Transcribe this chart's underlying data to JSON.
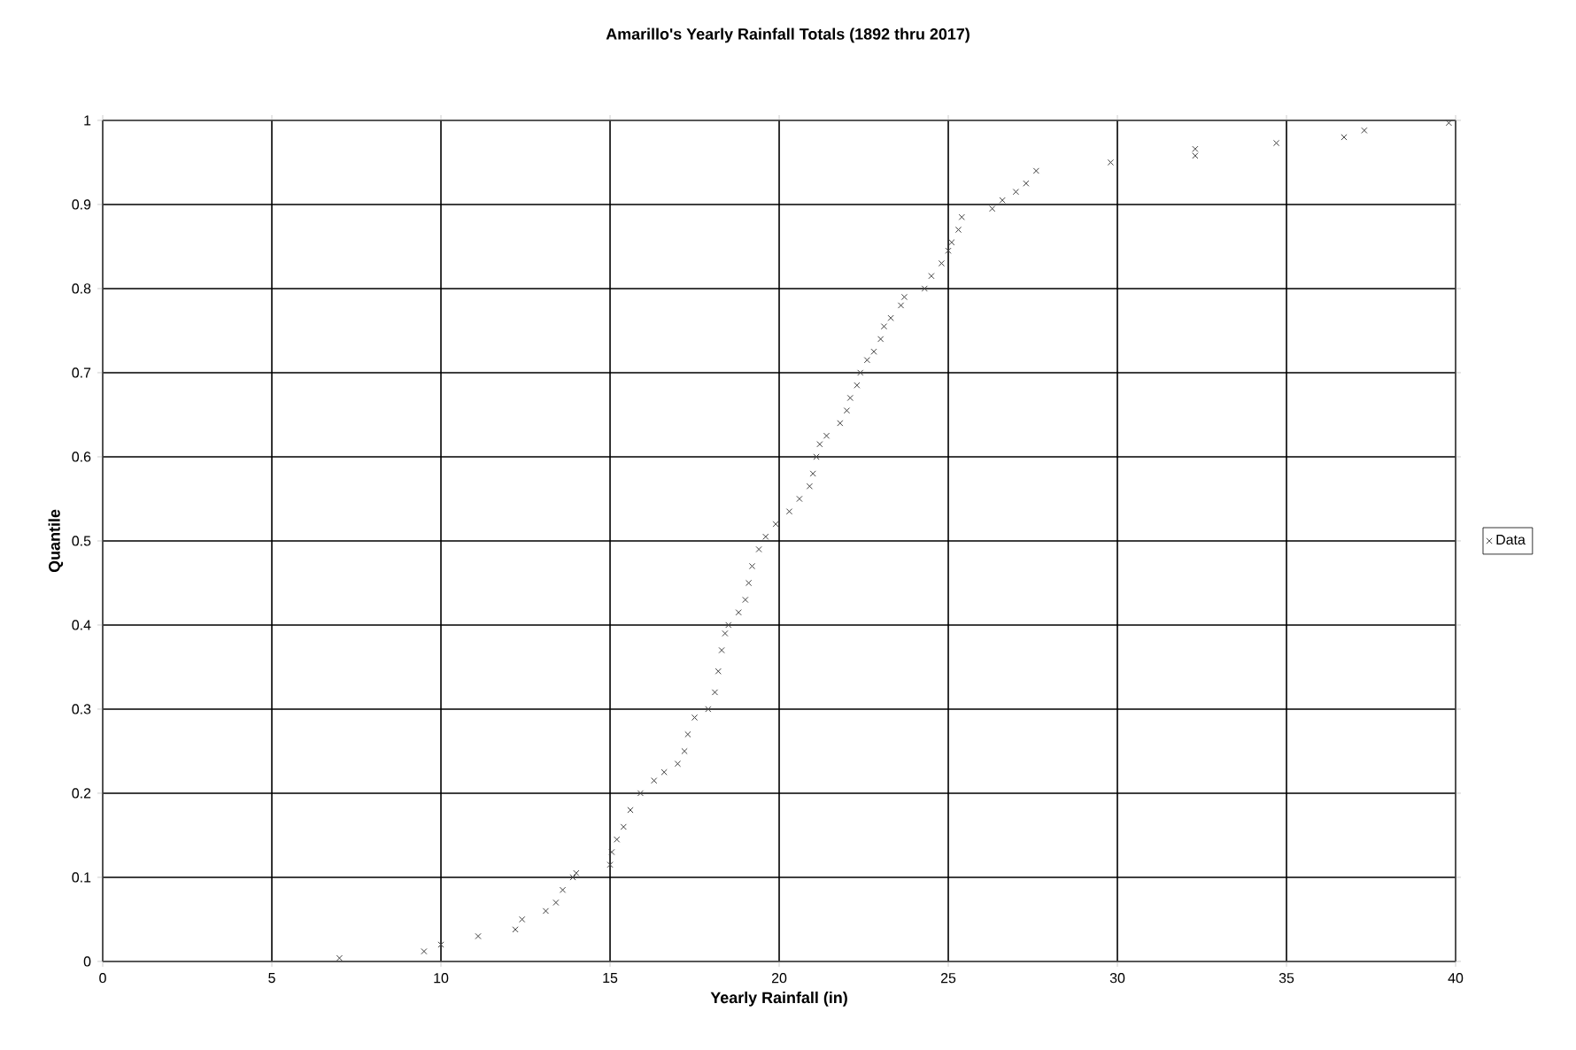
{
  "chart_data": {
    "type": "scatter",
    "title": "Amarillo's Yearly Rainfall Totals (1892 thru 2017)",
    "xlabel": "Yearly Rainfall (in)",
    "ylabel": "Quantile",
    "xlim": [
      0,
      40
    ],
    "ylim": [
      0,
      1
    ],
    "xticks": [
      0,
      5,
      10,
      15,
      20,
      25,
      30,
      35,
      40
    ],
    "yticks": [
      0,
      0.1,
      0.2,
      0.3,
      0.4,
      0.5,
      0.6,
      0.7,
      0.8,
      0.9,
      1
    ],
    "grid": true,
    "legend": "right",
    "marker": "cross",
    "series": [
      {
        "name": "Data",
        "color": "#404040",
        "x": [
          7.0,
          9.5,
          10.0,
          11.1,
          12.2,
          12.4,
          13.1,
          13.4,
          13.6,
          13.9,
          14.0,
          15.0,
          15.05,
          15.2,
          15.4,
          15.6,
          15.9,
          16.3,
          16.6,
          17.0,
          17.2,
          17.3,
          17.5,
          17.9,
          18.1,
          18.2,
          18.3,
          18.4,
          18.5,
          18.8,
          19.0,
          19.1,
          19.2,
          19.4,
          19.6,
          19.9,
          20.3,
          20.6,
          20.9,
          21.0,
          21.1,
          21.2,
          21.4,
          21.8,
          22.0,
          22.1,
          22.3,
          22.4,
          22.6,
          22.8,
          23.0,
          23.1,
          23.3,
          23.6,
          23.7,
          24.3,
          24.5,
          24.8,
          25.0,
          25.1,
          25.3,
          25.4,
          26.3,
          26.6,
          27.0,
          27.3,
          27.6,
          29.8,
          32.3,
          32.3,
          34.7,
          36.7,
          37.3,
          39.8
        ],
        "values": [
          0.004,
          0.012,
          0.02,
          0.03,
          0.038,
          0.05,
          0.06,
          0.07,
          0.085,
          0.1,
          0.105,
          0.115,
          0.13,
          0.145,
          0.16,
          0.18,
          0.2,
          0.215,
          0.225,
          0.235,
          0.25,
          0.27,
          0.29,
          0.3,
          0.32,
          0.345,
          0.37,
          0.39,
          0.4,
          0.415,
          0.43,
          0.45,
          0.47,
          0.49,
          0.505,
          0.52,
          0.535,
          0.55,
          0.565,
          0.58,
          0.6,
          0.615,
          0.625,
          0.64,
          0.655,
          0.67,
          0.685,
          0.7,
          0.715,
          0.725,
          0.74,
          0.755,
          0.765,
          0.78,
          0.79,
          0.8,
          0.815,
          0.83,
          0.845,
          0.855,
          0.87,
          0.885,
          0.895,
          0.905,
          0.915,
          0.925,
          0.94,
          0.95,
          0.958,
          0.966,
          0.973,
          0.98,
          0.988,
          0.997
        ]
      }
    ]
  }
}
